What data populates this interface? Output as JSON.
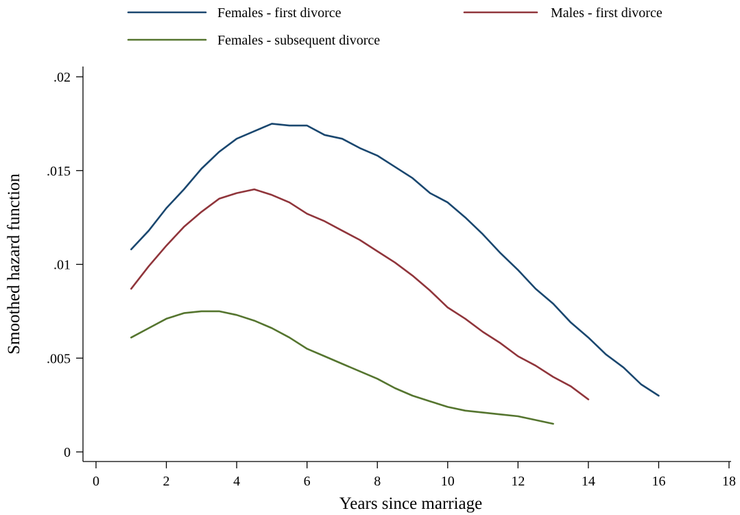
{
  "chart_data": {
    "type": "line",
    "title": "",
    "xlabel": "Years since marriage",
    "ylabel": "Smoothed hazard function",
    "xlim": [
      0,
      18
    ],
    "ylim": [
      0,
      0.02
    ],
    "x_ticks": [
      0,
      2,
      4,
      6,
      8,
      10,
      12,
      14,
      16,
      18
    ],
    "x_tick_labels": [
      "0",
      "2",
      "4",
      "6",
      "8",
      "10",
      "12",
      "14",
      "16",
      "18"
    ],
    "y_ticks": [
      0,
      0.005,
      0.01,
      0.015,
      0.02
    ],
    "y_tick_labels": [
      "0",
      ".005",
      ".01",
      ".015",
      ".02"
    ],
    "grid": false,
    "legend_position": "top",
    "series": [
      {
        "name": "Females - first divorce",
        "color": "#1a476f",
        "x": [
          1,
          1.5,
          2,
          2.5,
          3,
          3.5,
          4,
          4.5,
          5,
          5.5,
          6,
          6.5,
          7,
          7.5,
          8,
          8.5,
          9,
          9.5,
          10,
          10.5,
          11,
          11.5,
          12,
          12.5,
          13,
          13.5,
          14,
          14.5,
          15,
          15.5,
          16
        ],
        "y": [
          0.0108,
          0.0118,
          0.013,
          0.014,
          0.0151,
          0.016,
          0.0167,
          0.0171,
          0.0175,
          0.0174,
          0.0174,
          0.0169,
          0.0167,
          0.0162,
          0.0158,
          0.0152,
          0.0146,
          0.0138,
          0.0133,
          0.0125,
          0.0116,
          0.0106,
          0.0097,
          0.0087,
          0.0079,
          0.0069,
          0.0061,
          0.0052,
          0.0045,
          0.0036,
          0.003
        ]
      },
      {
        "name": "Males - first divorce",
        "color": "#90353b",
        "x": [
          1,
          1.5,
          2,
          2.5,
          3,
          3.5,
          4,
          4.5,
          5,
          5.5,
          6,
          6.5,
          7,
          7.5,
          8,
          8.5,
          9,
          9.5,
          10,
          10.5,
          11,
          11.5,
          12,
          12.5,
          13,
          13.5,
          14
        ],
        "y": [
          0.0087,
          0.0099,
          0.011,
          0.012,
          0.0128,
          0.0135,
          0.0138,
          0.014,
          0.0137,
          0.0133,
          0.0127,
          0.0123,
          0.0118,
          0.0113,
          0.0107,
          0.0101,
          0.0094,
          0.0086,
          0.0077,
          0.0071,
          0.0064,
          0.0058,
          0.0051,
          0.0046,
          0.004,
          0.0035,
          0.0028
        ]
      },
      {
        "name": "Females - subsequent divorce",
        "color": "#55752f",
        "x": [
          1,
          1.5,
          2,
          2.5,
          3,
          3.5,
          4,
          4.5,
          5,
          5.5,
          6,
          6.5,
          7,
          7.5,
          8,
          8.5,
          9,
          9.5,
          10,
          10.5,
          11,
          11.5,
          12,
          12.5,
          13
        ],
        "y": [
          0.0061,
          0.0066,
          0.0071,
          0.0074,
          0.0075,
          0.0075,
          0.0073,
          0.007,
          0.0066,
          0.0061,
          0.0055,
          0.0051,
          0.0047,
          0.0043,
          0.0039,
          0.0034,
          0.003,
          0.0027,
          0.0024,
          0.0022,
          0.0021,
          0.002,
          0.0019,
          0.0017,
          0.0015
        ]
      }
    ]
  }
}
